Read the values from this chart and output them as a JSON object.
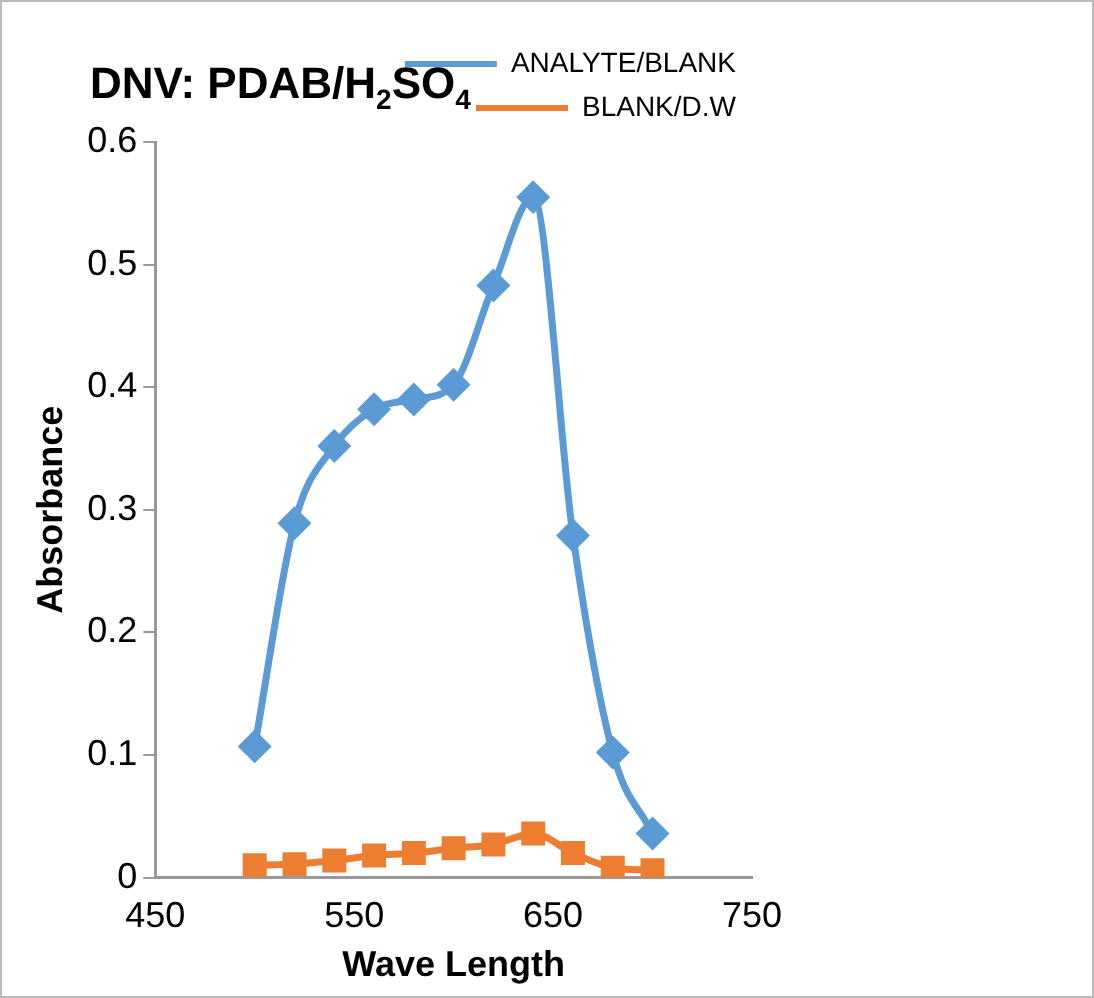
{
  "chart_data": {
    "type": "line",
    "title": "DNV: PDAB/H$_{2}$SO$_{4}$",
    "xlabel": "Wave Length",
    "ylabel": "Absorbance",
    "xlim": [
      450,
      750
    ],
    "xticks": [
      450,
      550,
      650,
      750
    ],
    "ylim": [
      0,
      0.6
    ],
    "yticks": [
      0,
      0.1,
      0.2,
      0.3,
      0.4,
      0.5,
      0.6
    ],
    "x": [
      500,
      520,
      540,
      560,
      580,
      600,
      620,
      640,
      660,
      680,
      700
    ],
    "series": [
      {
        "name": "ANALYTE/BLANK",
        "color": "#5b9bd5",
        "marker": "diamond",
        "values": [
          0.107,
          0.289,
          0.352,
          0.382,
          0.39,
          0.402,
          0.483,
          0.555,
          0.279,
          0.102,
          0.036
        ]
      },
      {
        "name": "BLANK/D.W",
        "color": "#ed7d31",
        "marker": "square",
        "values": [
          0.01,
          0.011,
          0.014,
          0.018,
          0.02,
          0.024,
          0.027,
          0.036,
          0.02,
          0.008,
          0.006
        ]
      }
    ],
    "grid": false,
    "legend": "top right"
  }
}
